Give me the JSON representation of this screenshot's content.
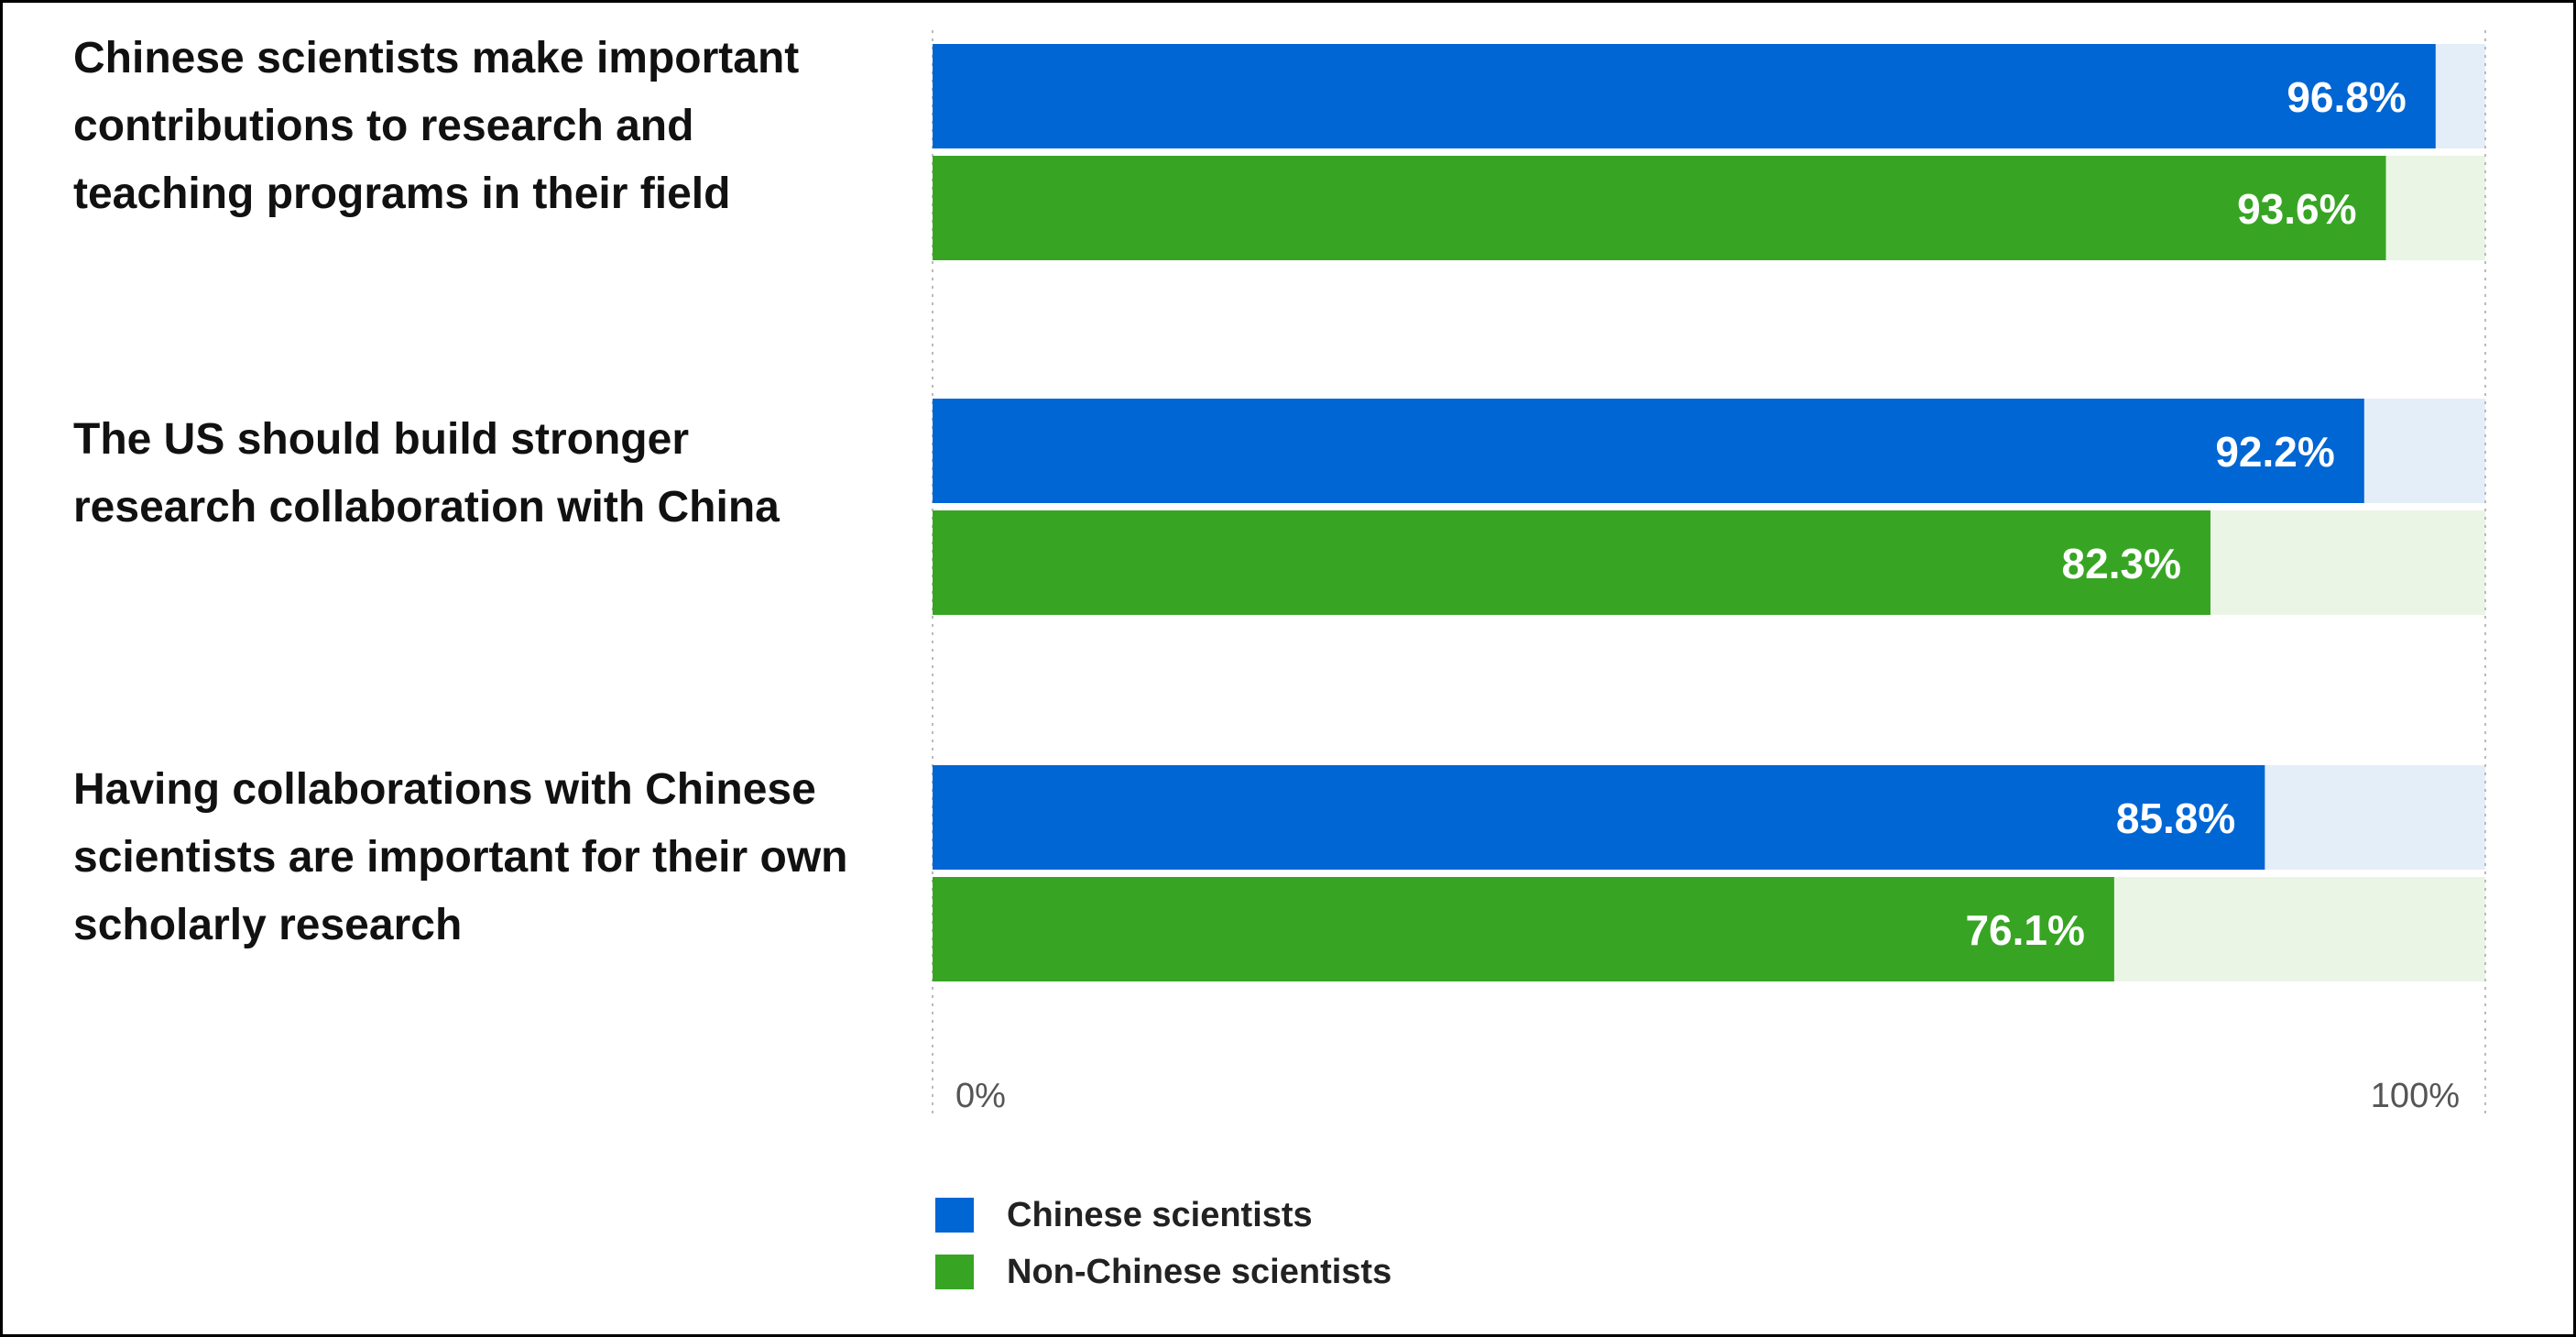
{
  "chart_data": {
    "type": "bar",
    "orientation": "horizontal",
    "categories": [
      "Chinese scientists make important contributions to research and teaching programs in their field",
      "The US should build stronger research collaboration with China",
      "Having collaborations with Chinese scientists are important for their own scholarly research"
    ],
    "series": [
      {
        "name": "Chinese scientists",
        "values": [
          96.8,
          92.2,
          85.8
        ],
        "labels": [
          "96.8%",
          "92.2%",
          "85.8%"
        ]
      },
      {
        "name": "Non-Chinese scientists",
        "values": [
          93.6,
          82.3,
          76.1
        ],
        "labels": [
          "93.6%",
          "82.3%",
          "76.1%"
        ]
      }
    ],
    "xlim": [
      0,
      100
    ],
    "x_ticks": [
      "0%",
      "100%"
    ],
    "legend_position": "bottom-left",
    "grid": false
  },
  "colors": {
    "chinese": "#0066D4",
    "chinese_track": "#E4EEF8",
    "non_chinese": "#37A523",
    "non_chinese_track": "#EAF5E6",
    "axis_line": "#BBBBBB",
    "tick_text": "#555555"
  }
}
